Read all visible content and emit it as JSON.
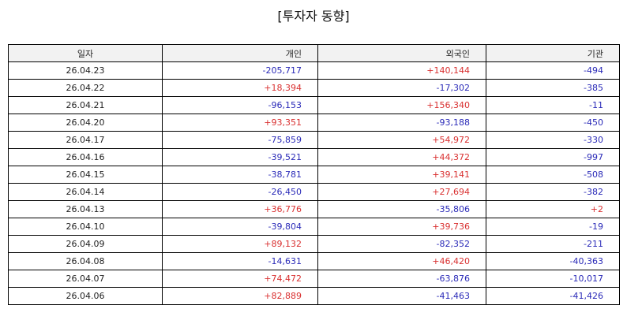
{
  "title": "[투자자 동향]",
  "colors": {
    "positive": "#d93030",
    "negative": "#2a2ab8"
  },
  "table": {
    "headers": [
      "일자",
      "개인",
      "외국인",
      "기관"
    ],
    "rows": [
      [
        "26.04.23",
        "-205,717",
        "+140,144",
        "-494"
      ],
      [
        "26.04.22",
        "+18,394",
        "-17,302",
        "-385"
      ],
      [
        "26.04.21",
        "-96,153",
        "+156,340",
        "-11"
      ],
      [
        "26.04.20",
        "+93,351",
        "-93,188",
        "-450"
      ],
      [
        "26.04.17",
        "-75,859",
        "+54,972",
        "-330"
      ],
      [
        "26.04.16",
        "-39,521",
        "+44,372",
        "-997"
      ],
      [
        "26.04.15",
        "-38,781",
        "+39,141",
        "-508"
      ],
      [
        "26.04.14",
        "-26,450",
        "+27,694",
        "-382"
      ],
      [
        "26.04.13",
        "+36,776",
        "-35,806",
        "+2"
      ],
      [
        "26.04.10",
        "-39,804",
        "+39,736",
        "-19"
      ],
      [
        "26.04.09",
        "+89,132",
        "-82,352",
        "-211"
      ],
      [
        "26.04.08",
        "-14,631",
        "+46,420",
        "-40,363"
      ],
      [
        "26.04.07",
        "+74,472",
        "-63,876",
        "-10,017"
      ],
      [
        "26.04.06",
        "+82,889",
        "-41,463",
        "-41,426"
      ]
    ]
  }
}
